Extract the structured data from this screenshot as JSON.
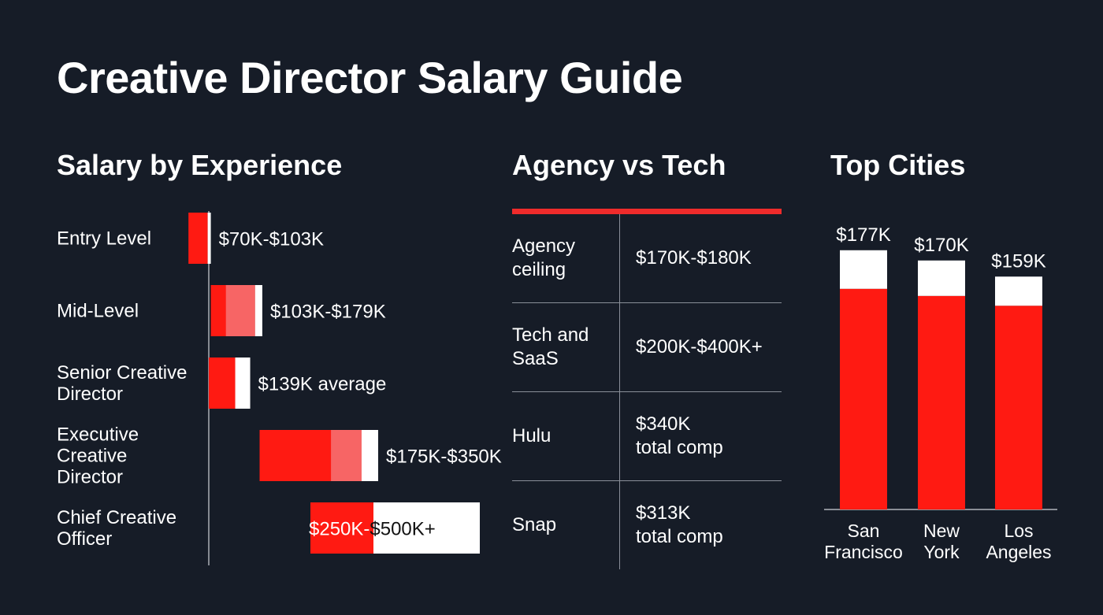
{
  "title": "Creative Director Salary Guide",
  "colors": {
    "background": "#161c27",
    "accent": "#ff1a12",
    "accent_light": "#f76565",
    "highlight": "#ffffff",
    "rule": "#ef2b2b"
  },
  "sections": {
    "experience": "Salary by Experience",
    "agency": "Agency vs Tech",
    "cities": "Top Cities"
  },
  "chart_data": [
    {
      "type": "bar",
      "orientation": "horizontal",
      "title": "Salary by Experience",
      "categories": [
        "Entry Level",
        "Mid-Level",
        "Senior Creative Director",
        "Executive Creative Director",
        "Chief Creative Officer"
      ],
      "segments": [
        {
          "min": 70,
          "max": 103,
          "label": "$70K-$103K"
        },
        {
          "min": 103,
          "max": 179,
          "label": "$103K-$179K"
        },
        {
          "min": 139,
          "max": 139,
          "label": "$139K average"
        },
        {
          "min": 175,
          "max": 350,
          "label": "$175K-$350K"
        },
        {
          "min": 250,
          "max": 500,
          "label": "$250K-$500K+"
        }
      ],
      "units": "K USD"
    },
    {
      "type": "table",
      "title": "Agency vs Tech",
      "rows": [
        {
          "label": "Agency\nceiling",
          "value": "$170K-$180K"
        },
        {
          "label": "Tech and\nSaaS",
          "value": "$200K-$400K+"
        },
        {
          "label": "Hulu",
          "value": "$340K\ntotal comp"
        },
        {
          "label": "Snap",
          "value": "$313K\ntotal comp"
        }
      ]
    },
    {
      "type": "bar",
      "title": "Top Cities",
      "categories": [
        "San Francisco",
        "New York",
        "Los Angeles"
      ],
      "category_lines": [
        [
          "San",
          "Francisco"
        ],
        [
          "New",
          "York"
        ],
        [
          "Los",
          "Angeles"
        ]
      ],
      "values": [
        177,
        170,
        159
      ],
      "value_labels": [
        "$177K",
        "$170K",
        "$159K"
      ],
      "units": "K USD"
    }
  ]
}
